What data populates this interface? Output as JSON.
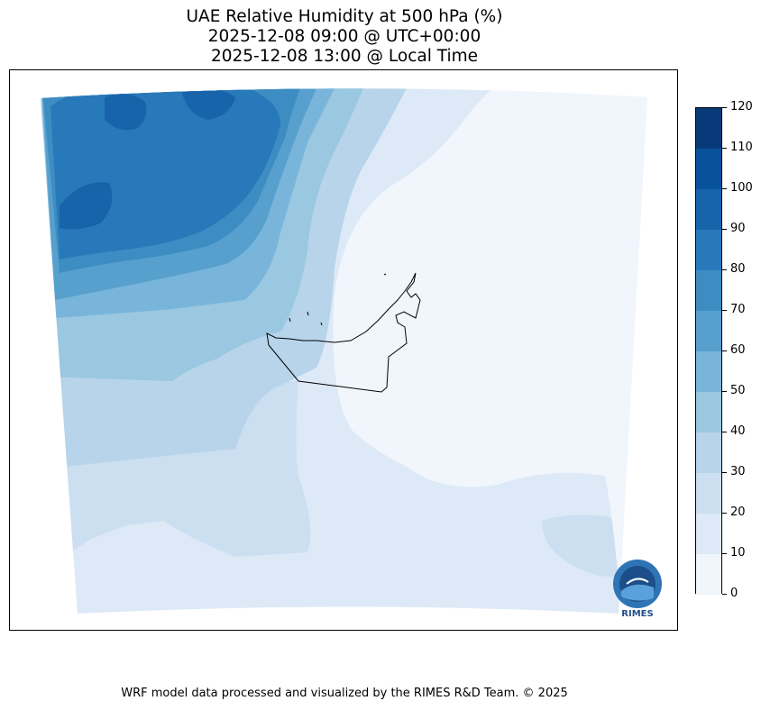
{
  "title": {
    "line1": "UAE Relative Humidity at 500 hPa (%)",
    "line2": "2025-12-08 09:00 @ UTC+00:00",
    "line3": "2025-12-08 13:00 @ Local Time"
  },
  "colorbar": {
    "ticks": [
      "0",
      "10",
      "20",
      "30",
      "40",
      "50",
      "60",
      "70",
      "80",
      "90",
      "100",
      "110",
      "120"
    ],
    "colors": [
      "#f0f6fc",
      "#dde9f6",
      "#ccdff1",
      "#b7d4ea",
      "#9ac8e0",
      "#79b5da",
      "#57a0ce",
      "#3d8dc3",
      "#2879b9",
      "#1764ab",
      "#08529c",
      "#083a7a"
    ]
  },
  "footer": "WRF model data processed and visualized by the RIMES R&D Team. © 2025",
  "logo": {
    "text": "RIMES",
    "icon": "rimes-logo-icon"
  }
}
